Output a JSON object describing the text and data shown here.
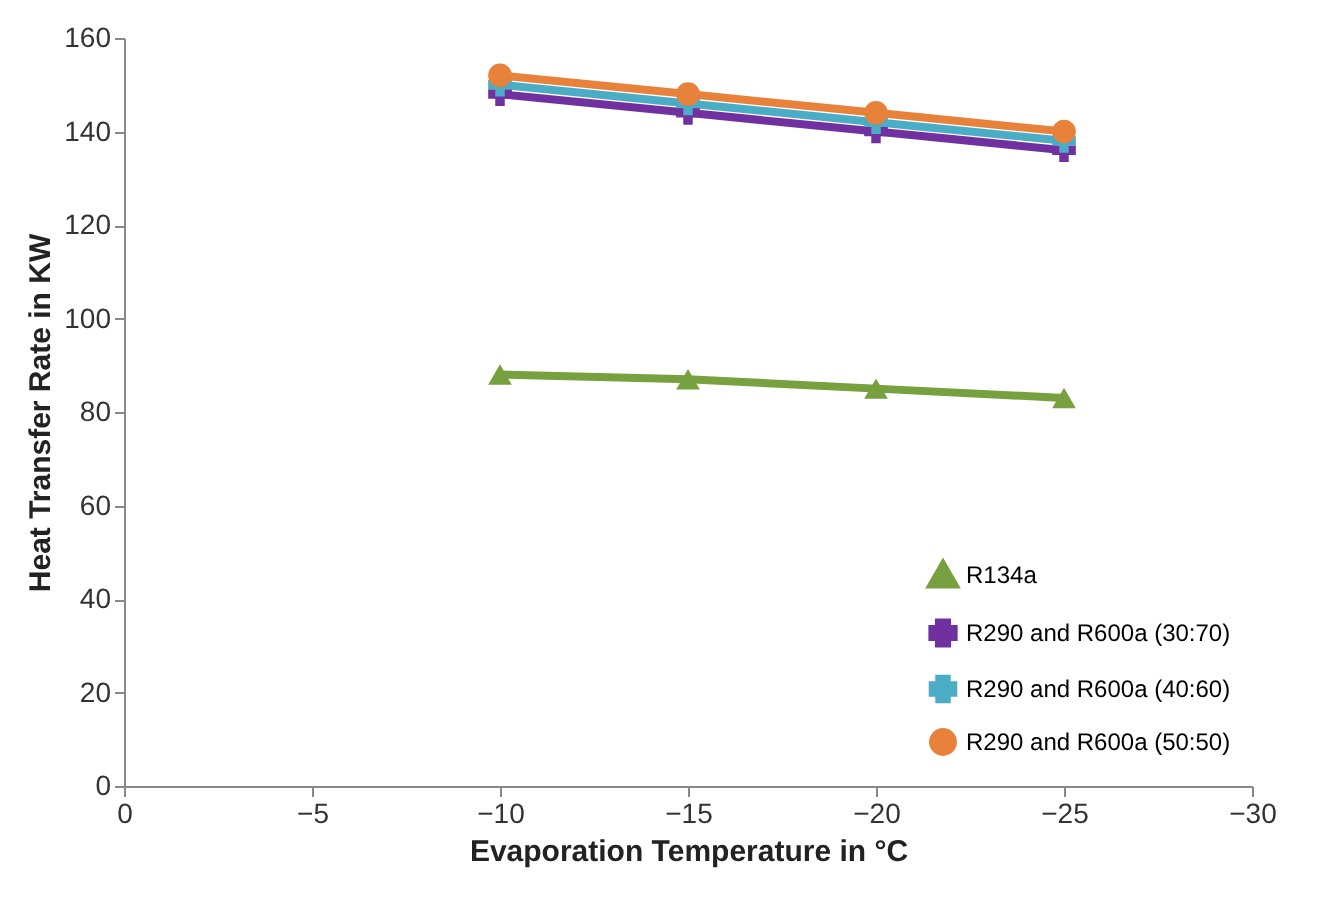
{
  "chart_data": {
    "type": "line",
    "xlabel": "Evaporation Temperature in °C",
    "ylabel": "Heat Transfer Rate in KW",
    "x": [
      -10,
      -15,
      -20,
      -25
    ],
    "series": [
      {
        "name": "R134a",
        "color": "#77a03f",
        "marker": "triangle",
        "values": [
          88,
          87,
          85,
          83
        ]
      },
      {
        "name": "R290 and R600a (30:70)",
        "color": "#7030a0",
        "marker": "cross",
        "values": [
          148,
          144,
          140,
          136
        ]
      },
      {
        "name": "R290 and R600a (40:60)",
        "color": "#4bacc6",
        "marker": "cross",
        "values": [
          150,
          146,
          142,
          138
        ]
      },
      {
        "name": "R290 and R600a (50:50)",
        "color": "#e8823a",
        "marker": "circle",
        "values": [
          152,
          148,
          144,
          140
        ]
      }
    ],
    "xlim": [
      0,
      -30
    ],
    "xticks": [
      0,
      -5,
      -10,
      -15,
      -20,
      -25,
      -30
    ],
    "ylim": [
      0,
      160
    ],
    "yticks": [
      0,
      20,
      40,
      60,
      80,
      100,
      120,
      140,
      160
    ],
    "grid": false,
    "legend": "bottom right",
    "line_style": "solid"
  }
}
